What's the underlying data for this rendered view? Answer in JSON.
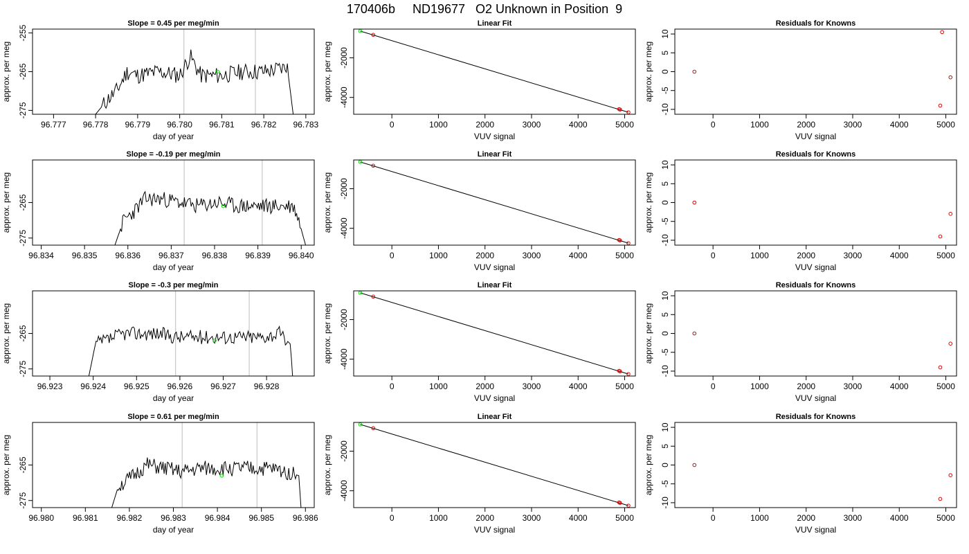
{
  "page": {
    "title": "170406b     ND19677   O2 Unknown in Position  9"
  },
  "chart_data": [
    {
      "panel": "row1-timeseries",
      "type": "line",
      "title": "Slope =  0.45  per meg/min",
      "xlabel": "day of year",
      "ylabel": "approx. per meg",
      "xlim": [
        96.7765,
        96.7832
      ],
      "ylim": [
        -276,
        -254
      ],
      "xticks": [
        96.777,
        96.778,
        96.779,
        96.78,
        96.781,
        96.782,
        96.783
      ],
      "xtick_labels": [
        "96.777",
        "96.778",
        "96.779",
        "96.780",
        "96.781",
        "96.782",
        "96.783"
      ],
      "yticks": [
        -255,
        -265,
        -275
      ],
      "ytick_labels": [
        "-255",
        "-265",
        "-275"
      ],
      "series": [
        {
          "x": [
            96.778,
            96.7783,
            96.7785,
            96.77875,
            96.779,
            96.7795,
            96.78,
            96.78025,
            96.7805,
            96.781,
            96.7815,
            96.782,
            96.7825,
            96.78255,
            96.7827
          ],
          "values": [
            -276,
            -272,
            -270,
            -265,
            -266,
            -265,
            -266,
            -261,
            -266,
            -266,
            -265,
            -265,
            -264,
            -263,
            -276
          ]
        }
      ],
      "markers": [
        {
          "x": 96.7809,
          "y": -265
        }
      ],
      "vlines": [
        96.7801,
        96.7818
      ],
      "wiggle_seed": 11,
      "wiggle_amp": 2.2
    },
    {
      "panel": "row1-fit",
      "type": "scatter",
      "title": "Linear Fit",
      "xlabel": "VUV signal",
      "ylabel": "approx. per meg",
      "xlim": [
        -820,
        5230
      ],
      "ylim": [
        -4850,
        -550
      ],
      "xticks": [
        0,
        1000,
        2000,
        3000,
        4000,
        5000
      ],
      "xtick_labels": [
        "0",
        "1000",
        "2000",
        "3000",
        "4000",
        "5000"
      ],
      "yticks": [
        -2000,
        -4000
      ],
      "ytick_labels": [
        "-2000",
        "-4000"
      ],
      "line": {
        "x": [
          -680,
          5080
        ],
        "y": [
          -650,
          -4750
        ]
      },
      "unknown": [
        {
          "x": -680,
          "y": -650
        }
      ],
      "knowns": [
        {
          "x": -400,
          "y": -840
        },
        {
          "x": 4880,
          "y": -4590
        },
        {
          "x": 4900,
          "y": -4610
        },
        {
          "x": 5080,
          "y": -4750
        }
      ]
    },
    {
      "panel": "row1-residuals",
      "type": "scatter",
      "title": "Residuals for Knowns",
      "xlabel": "VUV signal",
      "ylabel": "approx. per meg",
      "xlim": [
        -820,
        5230
      ],
      "ylim": [
        -11.3,
        11.3
      ],
      "xticks": [
        0,
        1000,
        2000,
        3000,
        4000,
        5000
      ],
      "xtick_labels": [
        "0",
        "1000",
        "2000",
        "3000",
        "4000",
        "5000"
      ],
      "yticks": [
        10,
        5,
        0,
        -5,
        -10
      ],
      "ytick_labels": [
        "10",
        "5",
        "0",
        "-5",
        "-10"
      ],
      "points": [
        {
          "x": -400,
          "y": 0
        },
        {
          "x": 4920,
          "y": 10.5
        },
        {
          "x": 5100,
          "y": -1.5
        },
        {
          "x": 4880,
          "y": -9
        }
      ]
    },
    {
      "panel": "row2-timeseries",
      "type": "line",
      "title": "Slope =  -0.19  per meg/min",
      "xlabel": "day of year",
      "ylabel": "approx. per meg",
      "xlim": [
        96.8338,
        96.8403
      ],
      "ylim": [
        -277,
        -253
      ],
      "xticks": [
        96.834,
        96.835,
        96.836,
        96.837,
        96.838,
        96.839,
        96.84
      ],
      "xtick_labels": [
        "96.834",
        "96.835",
        "96.836",
        "96.837",
        "96.838",
        "96.839",
        "96.840"
      ],
      "yticks": [
        -265,
        -275
      ],
      "ytick_labels": [
        "-265",
        "-275"
      ],
      "series": [
        {
          "x": [
            96.8357,
            96.8359,
            96.8361,
            96.8364,
            96.8368,
            96.8372,
            96.8376,
            96.8381,
            96.8385,
            96.839,
            96.8394,
            96.8398,
            96.8399,
            96.8401
          ],
          "values": [
            -277,
            -270,
            -268,
            -264,
            -264,
            -265,
            -266,
            -265,
            -266,
            -266,
            -266,
            -266,
            -268,
            -277
          ]
        }
      ],
      "markers": [
        {
          "x": 96.8382,
          "y": -266
        }
      ],
      "vlines": [
        96.8373,
        96.8391
      ],
      "wiggle_seed": 23,
      "wiggle_amp": 2.2
    },
    {
      "panel": "row2-fit",
      "type": "scatter",
      "title": "Linear Fit",
      "xlabel": "VUV signal",
      "ylabel": "approx. per meg",
      "xlim": [
        -820,
        5230
      ],
      "ylim": [
        -4850,
        -550
      ],
      "xticks": [
        0,
        1000,
        2000,
        3000,
        4000,
        5000
      ],
      "xtick_labels": [
        "0",
        "1000",
        "2000",
        "3000",
        "4000",
        "5000"
      ],
      "yticks": [
        -2000,
        -4000
      ],
      "ytick_labels": [
        "-2000",
        "-4000"
      ],
      "line": {
        "x": [
          -680,
          5080
        ],
        "y": [
          -650,
          -4750
        ]
      },
      "unknown": [
        {
          "x": -680,
          "y": -650
        }
      ],
      "knowns": [
        {
          "x": -400,
          "y": -840
        },
        {
          "x": 4880,
          "y": -4590
        },
        {
          "x": 4900,
          "y": -4610
        },
        {
          "x": 5080,
          "y": -4750
        }
      ]
    },
    {
      "panel": "row2-residuals",
      "type": "scatter",
      "title": "Residuals for Knowns",
      "xlabel": "VUV signal",
      "ylabel": "approx. per meg",
      "xlim": [
        -820,
        5230
      ],
      "ylim": [
        -11.3,
        11.3
      ],
      "xticks": [
        0,
        1000,
        2000,
        3000,
        4000,
        5000
      ],
      "xtick_labels": [
        "0",
        "1000",
        "2000",
        "3000",
        "4000",
        "5000"
      ],
      "yticks": [
        10,
        5,
        0,
        -5,
        -10
      ],
      "ytick_labels": [
        "10",
        "5",
        "0",
        "-5",
        "-10"
      ],
      "points": [
        {
          "x": -400,
          "y": 0
        },
        {
          "x": 5100,
          "y": -3
        },
        {
          "x": 4880,
          "y": -9
        }
      ]
    },
    {
      "panel": "row3-timeseries",
      "type": "line",
      "title": "Slope =  -0.3  per meg/min",
      "xlabel": "day of year",
      "ylabel": "approx. per meg",
      "xlim": [
        96.9226,
        96.9291
      ],
      "ylim": [
        -277,
        -253
      ],
      "xticks": [
        96.923,
        96.924,
        96.925,
        96.926,
        96.927,
        96.928
      ],
      "xtick_labels": [
        "96.923",
        "96.924",
        "96.925",
        "96.926",
        "96.927",
        "96.928"
      ],
      "yticks": [
        -265,
        -275
      ],
      "ytick_labels": [
        "-265",
        "-275"
      ],
      "series": [
        {
          "x": [
            96.9239,
            96.92405,
            96.9243,
            96.9247,
            96.9251,
            96.9255,
            96.9259,
            96.9263,
            96.9267,
            96.9271,
            96.9275,
            96.9279,
            96.9283,
            96.92855,
            96.9286
          ],
          "values": [
            -277,
            -268,
            -267,
            -265,
            -265,
            -265,
            -266,
            -266,
            -266,
            -266,
            -266,
            -266,
            -265,
            -268,
            -277
          ]
        }
      ],
      "markers": [
        {
          "x": 96.9268,
          "y": -267
        }
      ],
      "vlines": [
        96.9259,
        96.9276
      ],
      "wiggle_seed": 37,
      "wiggle_amp": 2.0
    },
    {
      "panel": "row3-fit",
      "type": "scatter",
      "title": "Linear Fit",
      "xlabel": "VUV signal",
      "ylabel": "approx. per meg",
      "xlim": [
        -820,
        5230
      ],
      "ylim": [
        -4850,
        -550
      ],
      "xticks": [
        0,
        1000,
        2000,
        3000,
        4000,
        5000
      ],
      "xtick_labels": [
        "0",
        "1000",
        "2000",
        "3000",
        "4000",
        "5000"
      ],
      "yticks": [
        -2000,
        -4000
      ],
      "ytick_labels": [
        "-2000",
        "-4000"
      ],
      "line": {
        "x": [
          -680,
          5080
        ],
        "y": [
          -650,
          -4750
        ]
      },
      "unknown": [
        {
          "x": -680,
          "y": -650
        }
      ],
      "knowns": [
        {
          "x": -400,
          "y": -840
        },
        {
          "x": 4880,
          "y": -4590
        },
        {
          "x": 4900,
          "y": -4610
        },
        {
          "x": 5080,
          "y": -4750
        }
      ]
    },
    {
      "panel": "row3-residuals",
      "type": "scatter",
      "title": "Residuals for Knowns",
      "xlabel": "VUV signal",
      "ylabel": "approx. per meg",
      "xlim": [
        -820,
        5230
      ],
      "ylim": [
        -11.3,
        11.3
      ],
      "xticks": [
        0,
        1000,
        2000,
        3000,
        4000,
        5000
      ],
      "xtick_labels": [
        "0",
        "1000",
        "2000",
        "3000",
        "4000",
        "5000"
      ],
      "yticks": [
        10,
        5,
        0,
        -5,
        -10
      ],
      "ytick_labels": [
        "10",
        "5",
        "0",
        "-5",
        "-10"
      ],
      "points": [
        {
          "x": -400,
          "y": 0
        },
        {
          "x": 5100,
          "y": -2.7
        },
        {
          "x": 4880,
          "y": -9
        }
      ]
    },
    {
      "panel": "row4-timeseries",
      "type": "line",
      "title": "Slope =  0.61  per meg/min",
      "xlabel": "day of year",
      "ylabel": "approx. per meg",
      "xlim": [
        96.9798,
        96.9862
      ],
      "ylim": [
        -277,
        -253
      ],
      "xticks": [
        96.98,
        96.981,
        96.982,
        96.983,
        96.984,
        96.985,
        96.986
      ],
      "xtick_labels": [
        "96.980",
        "96.981",
        "96.982",
        "96.983",
        "96.984",
        "96.985",
        "96.986"
      ],
      "yticks": [
        -265,
        -275
      ],
      "ytick_labels": [
        "-265",
        "-275"
      ],
      "series": [
        {
          "x": [
            96.9816,
            96.98175,
            96.982,
            96.9824,
            96.9828,
            96.9832,
            96.9836,
            96.984,
            96.9844,
            96.9848,
            96.9852,
            96.9856,
            96.98585,
            96.9859
          ],
          "values": [
            -277,
            -271,
            -269,
            -265,
            -266,
            -267,
            -266,
            -266,
            -266,
            -266,
            -266,
            -267,
            -268,
            -277
          ]
        }
      ],
      "markers": [
        {
          "x": 96.9841,
          "y": -268
        }
      ],
      "vlines": [
        96.9832,
        96.9849
      ],
      "wiggle_seed": 51,
      "wiggle_amp": 2.2
    },
    {
      "panel": "row4-fit",
      "type": "scatter",
      "title": "Linear Fit",
      "xlabel": "VUV signal",
      "ylabel": "approx. per meg",
      "xlim": [
        -820,
        5230
      ],
      "ylim": [
        -4850,
        -550
      ],
      "xticks": [
        0,
        1000,
        2000,
        3000,
        4000,
        5000
      ],
      "xtick_labels": [
        "0",
        "1000",
        "2000",
        "3000",
        "4000",
        "5000"
      ],
      "yticks": [
        -2000,
        -4000
      ],
      "ytick_labels": [
        "-2000",
        "-4000"
      ],
      "line": {
        "x": [
          -680,
          5080
        ],
        "y": [
          -650,
          -4750
        ]
      },
      "unknown": [
        {
          "x": -680,
          "y": -650
        }
      ],
      "knowns": [
        {
          "x": -400,
          "y": -840
        },
        {
          "x": 4880,
          "y": -4590
        },
        {
          "x": 4900,
          "y": -4610
        },
        {
          "x": 5080,
          "y": -4750
        }
      ]
    },
    {
      "panel": "row4-residuals",
      "type": "scatter",
      "title": "Residuals for Knowns",
      "xlabel": "VUV signal",
      "ylabel": "approx. per meg",
      "xlim": [
        -820,
        5230
      ],
      "ylim": [
        -11.3,
        11.3
      ],
      "xticks": [
        0,
        1000,
        2000,
        3000,
        4000,
        5000
      ],
      "xtick_labels": [
        "0",
        "1000",
        "2000",
        "3000",
        "4000",
        "5000"
      ],
      "yticks": [
        10,
        5,
        0,
        -5,
        -10
      ],
      "ytick_labels": [
        "10",
        "5",
        "0",
        "-5",
        "-10"
      ],
      "points": [
        {
          "x": -400,
          "y": 0
        },
        {
          "x": 5100,
          "y": -2.7
        },
        {
          "x": 4880,
          "y": -9
        }
      ]
    }
  ],
  "colors": {
    "line": "#000000",
    "axis": "#000000",
    "vline": "#c8c8c8",
    "unknown_marker": "#00dd00",
    "known_marker": "#dd0000"
  }
}
